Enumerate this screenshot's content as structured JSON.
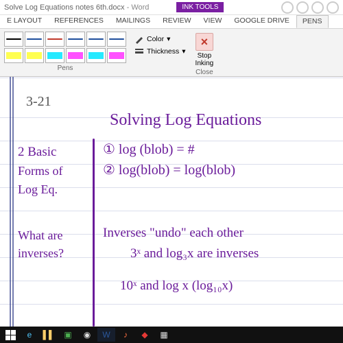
{
  "titlebar": {
    "doc": "Solve Log Equations notes 6th.docx",
    "app": "Word",
    "inktools": "INK TOOLS"
  },
  "menu": {
    "items": [
      "E LAYOUT",
      "REFERENCES",
      "MAILINGS",
      "REVIEW",
      "VIEW",
      "GOOGLE DRIVE",
      "PENS"
    ],
    "active": 6
  },
  "ribbon": {
    "pens_row1": [
      "#000000",
      "#1f4e9c",
      "#c0392b",
      "#1f4e9c",
      "#1f4e9c",
      "#1f4e9c"
    ],
    "pens_row2_hl": [
      "#ffff33",
      "#ffff33",
      "#00e5ff",
      "#ff33ff",
      "#00e5ff",
      "#ff33ff"
    ],
    "group": "Pens",
    "color": "Color",
    "thickness": "Thickness",
    "stop1": "Stop",
    "stop2": "Inking",
    "close": "Close"
  },
  "hand": {
    "date": "3-21",
    "title": "Solving Log Equations",
    "left1": "2 Basic",
    "left2": "Forms of",
    "left3": "Log Eq.",
    "r1": "①  log (blob) = #",
    "r2": "②  log(blob) = log(blob)",
    "q1": "What are",
    "q2": "inverses?",
    "a1": "Inverses \"undo\" each other",
    "a2": "3ˣ and log₃x are inverses",
    "a3": "10ˣ and log x  (log₁₀x)"
  },
  "taskbar_icons": [
    "windows",
    "ie",
    "folder",
    "store",
    "chrome",
    "word",
    "music",
    "pdf",
    "smartboard"
  ]
}
